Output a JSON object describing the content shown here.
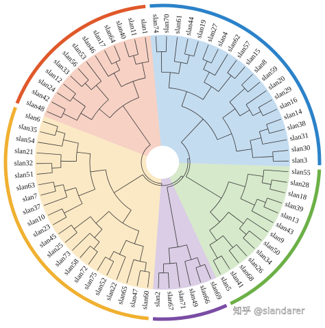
{
  "clades": [
    {
      "color": "#2b82c9",
      "leaves": [
        "slan74",
        "slan70",
        "slan61",
        "slan44",
        "slan19",
        "slan27",
        "slan4",
        "slan62",
        "slan57",
        "slan15",
        "slan8",
        "slan59",
        "slan20",
        "slan29",
        "slan16",
        "slan14",
        "slan38",
        "slan31",
        "slan30",
        "slan3"
      ]
    },
    {
      "color": "#6cb046",
      "leaves": [
        "slan55",
        "slan28",
        "slan18",
        "slan39",
        "slan13",
        "slan43",
        "slan9",
        "slan50",
        "slan34",
        "slan26",
        "slan68",
        "slan41",
        "slan5"
      ]
    },
    {
      "color": "#7a4ca3",
      "leaves": [
        "slan69",
        "slan66",
        "slan49",
        "slan71",
        "slan67",
        "slan2"
      ]
    },
    {
      "color": "#f0b030",
      "leaves": [
        "slan60",
        "slan47",
        "slan65",
        "slan22",
        "slan52",
        "slan75",
        "slan72",
        "slan58",
        "slan73",
        "slan25",
        "slan45",
        "slan23",
        "slan10",
        "slan37",
        "slan7",
        "slan63",
        "slan51",
        "slan32",
        "slan21",
        "slan54",
        "slan35",
        "slan6"
      ]
    },
    {
      "color": "#e0582a",
      "leaves": [
        "slan48",
        "slan42",
        "slan24",
        "slan12",
        "slan33",
        "slan56",
        "slan53",
        "slan46",
        "slan17",
        "slan64",
        "slan40",
        "slan11",
        "slan1"
      ]
    }
  ],
  "watermark": "知乎 @slandarer"
}
